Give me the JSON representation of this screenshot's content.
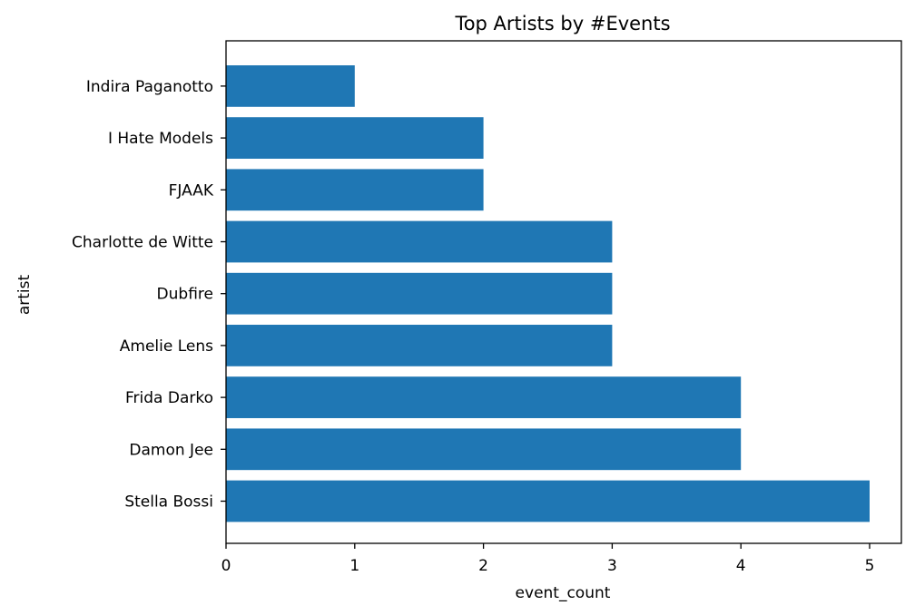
{
  "chart_data": {
    "type": "bar",
    "orientation": "horizontal",
    "title": "Top Artists by #Events",
    "xlabel": "event_count",
    "ylabel": "artist",
    "categories": [
      "Stella Bossi",
      "Damon Jee",
      "Frida Darko",
      "Amelie Lens",
      "Dubfire ",
      "Charlotte de Witte",
      "FJAAK",
      "I Hate Models",
      "Indira Paganotto"
    ],
    "values": [
      5,
      4,
      4,
      3,
      3,
      3,
      2,
      2,
      1
    ],
    "xlim": [
      0,
      5.25
    ],
    "xticks": [
      0,
      1,
      2,
      3,
      4,
      5
    ],
    "grid": false,
    "bar_color": "#1f77b4"
  }
}
